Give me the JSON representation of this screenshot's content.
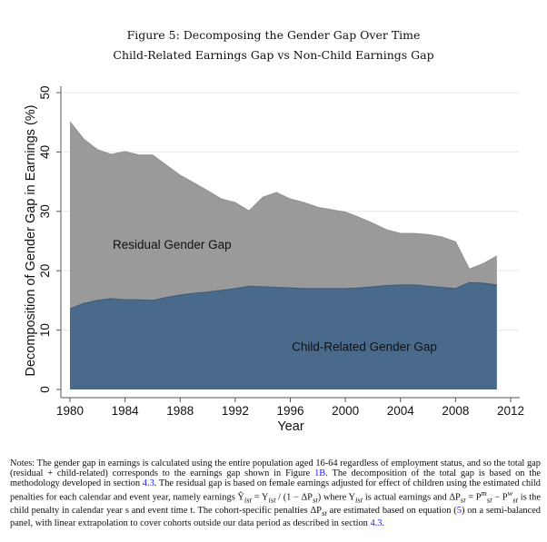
{
  "figure": {
    "title": "Figure 5: Decomposing the Gender Gap Over Time",
    "subtitle": "Child-Related Earnings Gap vs Non-Child Earnings Gap"
  },
  "chart_data": {
    "type": "area",
    "stacked": true,
    "title": "Figure 5: Decomposing the Gender Gap Over Time",
    "subtitle": "Child-Related Earnings Gap vs Non-Child Earnings Gap",
    "xlabel": "Year",
    "ylabel": "Decomposition of Gender Gap in Earnings (%)",
    "xlim": [
      1980,
      2012
    ],
    "ylim": [
      0,
      50
    ],
    "xticks": [
      1980,
      1984,
      1988,
      1992,
      1996,
      2000,
      2004,
      2008,
      2012
    ],
    "yticks": [
      0,
      10,
      20,
      30,
      40,
      50
    ],
    "grid": "horizontal",
    "x": [
      1980,
      1981,
      1982,
      1983,
      1984,
      1985,
      1986,
      1987,
      1988,
      1989,
      1990,
      1991,
      1992,
      1993,
      1994,
      1995,
      1996,
      1997,
      1998,
      1999,
      2000,
      2001,
      2002,
      2003,
      2004,
      2005,
      2006,
      2007,
      2008,
      2009,
      2010,
      2011
    ],
    "series": [
      {
        "name": "Child-Related Gender Gap",
        "color": "#4a6a8c",
        "values": [
          13.6,
          14.5,
          15.0,
          15.3,
          15.1,
          15.1,
          15.0,
          15.5,
          15.9,
          16.2,
          16.4,
          16.7,
          17.0,
          17.4,
          17.3,
          17.2,
          17.1,
          17.0,
          17.0,
          17.0,
          17.0,
          17.1,
          17.3,
          17.5,
          17.6,
          17.6,
          17.4,
          17.2,
          17.0,
          18.0,
          17.9,
          17.6
        ]
      },
      {
        "name": "Residual Gender Gap",
        "color": "#9a9a9a",
        "total_values": [
          45.1,
          42.2,
          40.4,
          39.6,
          40.1,
          39.5,
          39.5,
          37.8,
          36.1,
          34.8,
          33.5,
          32.1,
          31.5,
          30.1,
          32.4,
          33.2,
          32.1,
          31.5,
          30.7,
          30.3,
          29.9,
          29.0,
          28.0,
          26.9,
          26.3,
          26.3,
          26.1,
          25.7,
          24.9,
          20.3,
          21.2,
          22.5
        ]
      }
    ],
    "annotations": [
      {
        "text": "Residual Gender Gap",
        "x": 1983.5,
        "y": 24.5
      },
      {
        "text": "Child-Related Gender Gap",
        "x": 1996.5,
        "y": 7.3
      }
    ]
  },
  "notes": {
    "prefix": "Notes: The gender gap in earnings is calculated using the entire population aged 16-64 regardless of employment status, and so the total gap (residual + child-related) corresponds to the earnings gap shown in Figure ",
    "ref1": "1B",
    "part2": ". The decomposition of the total gap is based on the methodology developed in section ",
    "ref2": "4.3",
    "part3": ". The residual gap is based on female earnings adjusted for effect of children using the estimated child penalties for each calendar and event year, namely earnings Ŷ",
    "part4": " = Y",
    "part5": " / (1 − ΔP",
    "part6": ") where Y",
    "part7": " is actual earnings and ΔP",
    "part8": " = P",
    "part9": " − P",
    "part10": " is the child penalty in calendar year s and event time t. The cohort-specific penalties ΔP",
    "part11": " are estimated based on equation (",
    "ref3": "5",
    "part12": ") on a semi-balanced panel, with linear extrapolation to cover cohorts outside our data period as described in section ",
    "ref4": "4.3",
    "part13": "."
  }
}
